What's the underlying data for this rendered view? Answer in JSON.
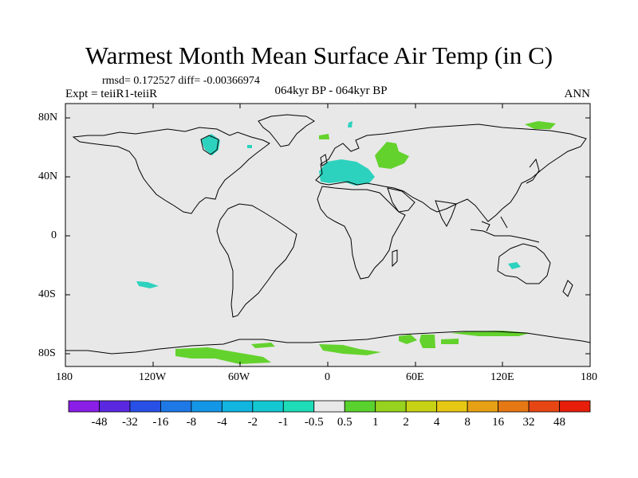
{
  "title": "Warmest Month Mean Surface Air Temp (in C)",
  "stats": "rmsd= 0.172527 diff= -0.00366974",
  "experiment": "Expt = teiiR1-teiiR",
  "period": "064kyr BP - 064kyr BP",
  "season": "ANN",
  "map": {
    "projection": "cylindrical-equidistant",
    "background_color": "#e8e8e8",
    "lat_ticks": [
      "80N",
      "40N",
      "0",
      "40S",
      "80S"
    ],
    "lon_ticks": [
      "180",
      "120W",
      "60W",
      "0",
      "60E",
      "120E",
      "180"
    ]
  },
  "colorbar": {
    "labels": [
      "-48",
      "-32",
      "-16",
      "-8",
      "-4",
      "-2",
      "-1",
      "-0.5",
      "0.5",
      "1",
      "2",
      "4",
      "8",
      "16",
      "32",
      "48"
    ],
    "colors": [
      "#8a1de6",
      "#5a28e0",
      "#2850e6",
      "#1e78e6",
      "#1496e6",
      "#12b4e0",
      "#14c8d2",
      "#1edcb8",
      "#e8e8e8",
      "#5ad22d",
      "#96d21e",
      "#c8d214",
      "#e6c814",
      "#e6a014",
      "#e67814",
      "#e64614",
      "#e61e0a"
    ]
  },
  "anomaly_colors": {
    "negative": "#2dd2be",
    "positive": "#64d22d"
  }
}
